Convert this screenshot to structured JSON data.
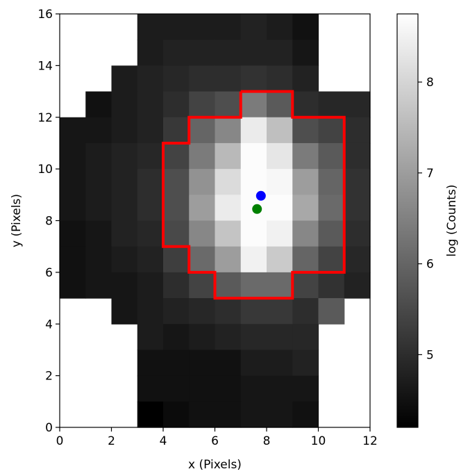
{
  "chart_data": {
    "type": "heatmap",
    "xlabel": "x (Pixels)",
    "ylabel": "y (Pixels)",
    "xlim": [
      0,
      12
    ],
    "ylim": [
      0,
      16
    ],
    "x_ticks": [
      0,
      2,
      4,
      6,
      8,
      10,
      12
    ],
    "y_ticks": [
      0,
      2,
      4,
      6,
      8,
      10,
      12,
      14,
      16
    ],
    "colormap": "gray",
    "colorbar": {
      "label": "log (Counts)",
      "range": [
        4.2,
        8.75
      ],
      "ticks": [
        5,
        6,
        7,
        8
      ]
    },
    "grid": false,
    "rows_order": "top row (y 15-16) first, bottom row (y 0-1) last; null = masked (white)",
    "pixel_values": [
      [
        null,
        null,
        null,
        4.7,
        4.7,
        4.7,
        4.7,
        4.8,
        4.7,
        4.5,
        null,
        null
      ],
      [
        null,
        null,
        null,
        4.7,
        4.8,
        4.8,
        4.8,
        4.8,
        4.8,
        4.6,
        null,
        null
      ],
      [
        null,
        null,
        4.7,
        4.8,
        4.9,
        5.0,
        5.0,
        5.1,
        5.0,
        4.8,
        null,
        null
      ],
      [
        null,
        4.5,
        4.7,
        4.8,
        5.0,
        5.4,
        5.6,
        6.4,
        5.8,
        5.0,
        4.9,
        4.9
      ],
      [
        4.6,
        4.6,
        4.7,
        4.8,
        5.2,
        6.0,
        6.6,
        8.4,
        7.6,
        5.6,
        5.4,
        5.0
      ],
      [
        4.6,
        4.7,
        4.8,
        4.9,
        5.4,
        6.4,
        7.5,
        8.7,
        8.3,
        6.4,
        5.8,
        5.0
      ],
      [
        4.6,
        4.7,
        4.8,
        5.0,
        5.6,
        6.8,
        8.1,
        8.7,
        8.6,
        7.0,
        6.0,
        5.1
      ],
      [
        4.6,
        4.7,
        4.8,
        5.0,
        5.6,
        7.0,
        8.4,
        8.7,
        8.7,
        7.2,
        6.1,
        5.1
      ],
      [
        4.5,
        4.6,
        4.8,
        4.9,
        5.5,
        6.6,
        7.7,
        8.7,
        8.5,
        6.6,
        5.8,
        5.0
      ],
      [
        4.5,
        4.6,
        4.7,
        4.8,
        5.3,
        6.1,
        7.0,
        8.5,
        7.8,
        6.0,
        5.4,
        4.9
      ],
      [
        4.5,
        4.6,
        4.6,
        4.7,
        5.0,
        5.4,
        5.8,
        6.1,
        6.1,
        5.4,
        5.1,
        4.8
      ],
      [
        null,
        null,
        4.6,
        4.7,
        4.8,
        4.9,
        5.0,
        5.2,
        5.2,
        5.0,
        5.8,
        null
      ],
      [
        null,
        null,
        null,
        4.7,
        4.6,
        4.7,
        4.8,
        4.9,
        4.9,
        4.9,
        null,
        null
      ],
      [
        null,
        null,
        null,
        4.5,
        4.5,
        4.5,
        4.5,
        4.7,
        4.7,
        4.8,
        null,
        null
      ],
      [
        null,
        null,
        null,
        4.5,
        4.5,
        4.5,
        4.5,
        4.6,
        4.6,
        4.6,
        null,
        null
      ],
      [
        null,
        null,
        null,
        4.2,
        4.4,
        4.5,
        4.5,
        4.6,
        4.6,
        4.5,
        null,
        null
      ]
    ],
    "aperture_outline": [
      [
        7,
        13
      ],
      [
        9,
        13
      ],
      [
        9,
        12
      ],
      [
        11,
        12
      ],
      [
        11,
        6
      ],
      [
        9,
        6
      ],
      [
        9,
        5
      ],
      [
        6,
        5
      ],
      [
        6,
        6
      ],
      [
        5,
        6
      ],
      [
        5,
        7
      ],
      [
        4,
        7
      ],
      [
        4,
        11
      ],
      [
        5,
        11
      ],
      [
        5,
        12
      ],
      [
        7,
        12
      ],
      [
        7,
        13
      ]
    ],
    "aperture_color": "#ff0000",
    "markers": [
      {
        "x": 7.78,
        "y": 8.96,
        "color": "#0000ff"
      },
      {
        "x": 7.63,
        "y": 8.45,
        "color": "#008000"
      }
    ]
  }
}
